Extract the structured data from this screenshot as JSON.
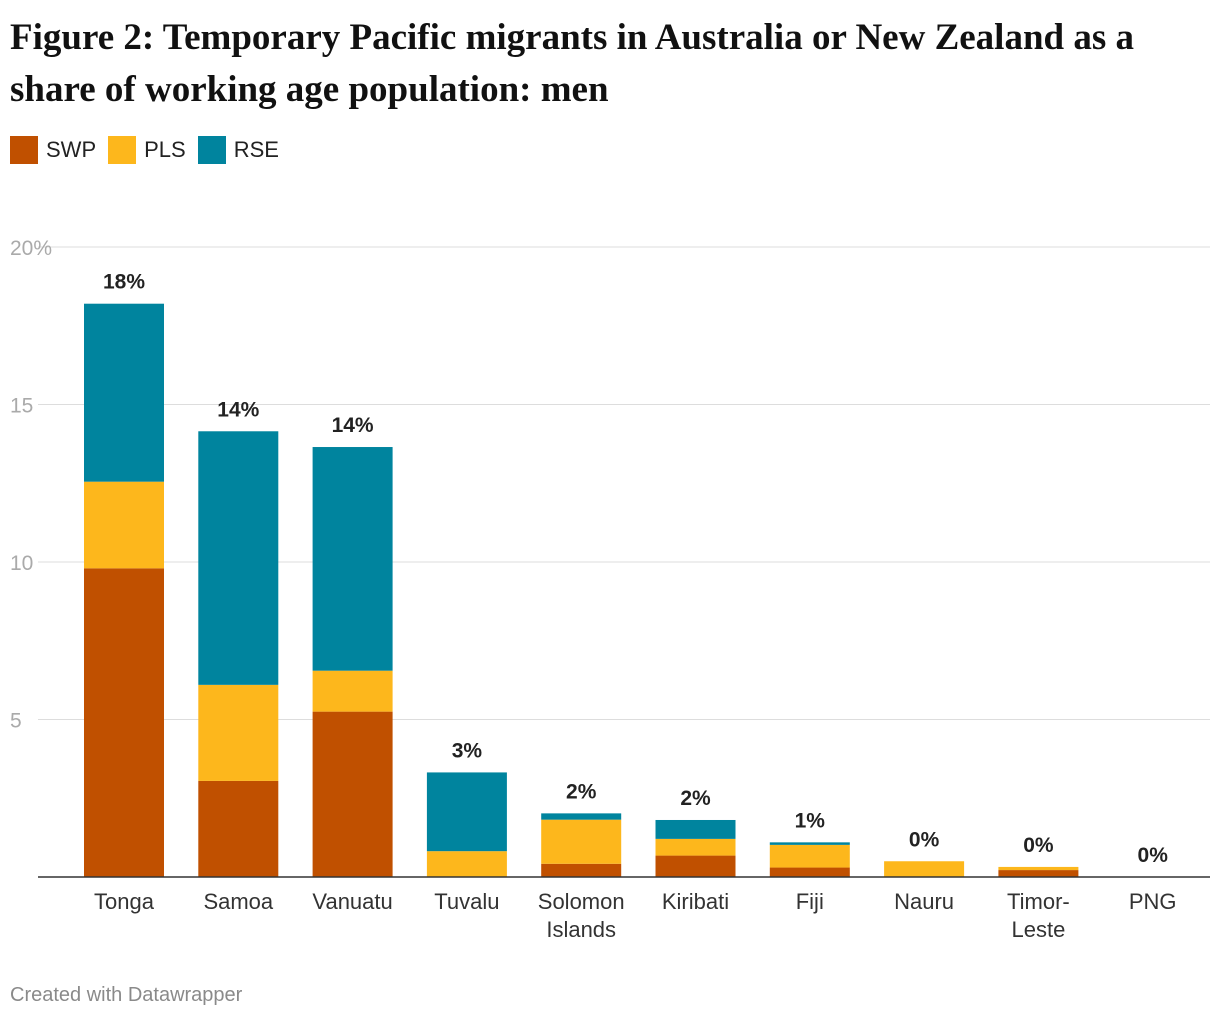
{
  "title": "Figure 2: Temporary Pacific migrants in Australia or New Zealand as a share of working age population: men",
  "footer": "Created with Datawrapper",
  "colors": {
    "SWP": "#c05000",
    "PLS": "#fdb71c",
    "RSE": "#00849e"
  },
  "chart_data": {
    "type": "bar",
    "stacked": true,
    "title": "Figure 2: Temporary Pacific migrants in Australia or New Zealand as a share of working age population: men",
    "xlabel": "",
    "ylabel": "",
    "ylim": [
      0,
      20
    ],
    "yticks": [
      "20%",
      "15",
      "10",
      "5"
    ],
    "grid": true,
    "legend_position": "top-left",
    "categories": [
      "Tonga",
      "Samoa",
      "Vanuatu",
      "Tuvalu",
      "Solomon Islands",
      "Kiribati",
      "Fiji",
      "Nauru",
      "Timor-Leste",
      "PNG"
    ],
    "series": [
      {
        "name": "SWP",
        "values": [
          9.8,
          3.05,
          5.25,
          0,
          0.42,
          0.68,
          0.3,
          0,
          0.22,
          0
        ]
      },
      {
        "name": "PLS",
        "values": [
          2.75,
          3.05,
          1.3,
          0.82,
          1.4,
          0.53,
          0.72,
          0.5,
          0.1,
          0
        ]
      },
      {
        "name": "RSE",
        "values": [
          5.65,
          8.05,
          7.1,
          2.5,
          0.2,
          0.6,
          0.08,
          0,
          0,
          0
        ]
      }
    ],
    "data_labels": [
      "18%",
      "14%",
      "14%",
      "3%",
      "2%",
      "2%",
      "1%",
      "0%",
      "0%",
      "0%"
    ]
  }
}
